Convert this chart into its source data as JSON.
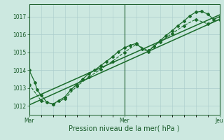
{
  "title": "",
  "xlabel": "Pression niveau de la mer( hPa )",
  "bg_color": "#cce8e0",
  "grid_color": "#aacccc",
  "line_color": "#1a6b2a",
  "text_color": "#1a5c2a",
  "ylim": [
    1011.5,
    1017.7
  ],
  "xtick_labels": [
    "Mar",
    "Mer",
    "Jeu"
  ],
  "xtick_positions": [
    0,
    48,
    96
  ],
  "ytick_values": [
    1012,
    1013,
    1014,
    1015,
    1016,
    1017
  ],
  "total_hours": 96,
  "series_main": {
    "x": [
      0,
      3,
      4,
      6,
      9,
      12,
      15,
      18,
      21,
      24,
      27,
      30,
      33,
      36,
      39,
      42,
      45,
      48,
      51,
      54,
      57,
      60,
      63,
      66,
      69,
      72,
      75,
      78,
      81,
      84,
      87,
      90,
      93,
      96
    ],
    "y": [
      1014.0,
      1013.3,
      1012.9,
      1012.6,
      1012.2,
      1012.1,
      1012.3,
      1012.5,
      1012.9,
      1013.2,
      1013.5,
      1013.8,
      1014.0,
      1014.25,
      1014.5,
      1014.75,
      1015.05,
      1015.25,
      1015.4,
      1015.5,
      1015.2,
      1015.05,
      1015.35,
      1015.65,
      1015.95,
      1016.2,
      1016.5,
      1016.75,
      1017.05,
      1017.25,
      1017.3,
      1017.15,
      1016.85,
      1017.0
    ],
    "marker": "D",
    "markersize": 2.0,
    "linewidth": 0.9,
    "linestyle": "-"
  },
  "series_dash": {
    "x": [
      0,
      6,
      12,
      18,
      24,
      30,
      36,
      42,
      48,
      54,
      60,
      66,
      72,
      78,
      84,
      90,
      96
    ],
    "y": [
      1013.2,
      1012.3,
      1012.1,
      1012.4,
      1013.1,
      1013.6,
      1014.05,
      1014.5,
      1015.0,
      1015.45,
      1015.1,
      1015.6,
      1016.05,
      1016.5,
      1016.85,
      1016.6,
      1016.85
    ],
    "marker": "D",
    "markersize": 2.0,
    "linewidth": 0.8,
    "linestyle": "--"
  },
  "trend1": {
    "x": [
      0,
      96
    ],
    "y": [
      1012.05,
      1016.85
    ],
    "linewidth": 1.1,
    "linestyle": "-"
  },
  "trend2": {
    "x": [
      0,
      96
    ],
    "y": [
      1012.35,
      1017.1
    ],
    "linewidth": 1.1,
    "linestyle": "-"
  },
  "grid_minor_x_step": 6,
  "label_fontsize": 6.5,
  "tick_fontsize": 5.5,
  "xlabel_fontsize": 7.0
}
